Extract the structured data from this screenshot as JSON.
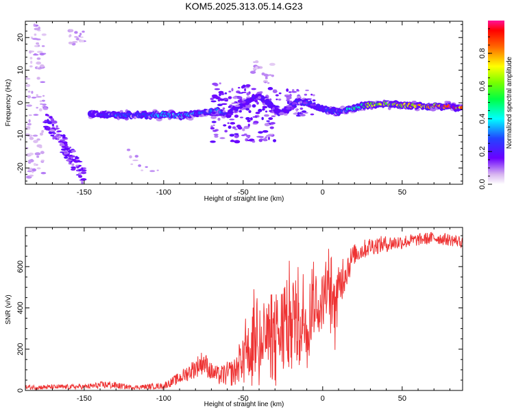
{
  "title": "KOM5.2025.313.05.14.G23",
  "chart_data": [
    {
      "type": "heatmap",
      "xlabel": "Height of straight line (km)",
      "ylabel": "Frequency (Hz)",
      "xlim": [
        -187,
        88
      ],
      "ylim": [
        -25,
        25
      ],
      "xticks": [
        -150,
        -100,
        -50,
        0,
        50
      ],
      "yticks": [
        -20,
        -10,
        0,
        10,
        20
      ],
      "colorbar": {
        "label": "Normalized spectral amplitude",
        "range": [
          0,
          1
        ],
        "ticks": [
          "0.0",
          "0.2",
          "0.4",
          "0.6",
          "0.8"
        ],
        "tick_values": [
          0,
          0.2,
          0.4,
          0.6,
          0.8
        ]
      },
      "ridge": {
        "x": [
          -145,
          -130,
          -115,
          -100,
          -90,
          -80,
          -72,
          -66,
          -60,
          -55,
          -48,
          -42,
          -35,
          -28,
          -22,
          -16,
          -10,
          -5,
          0,
          10,
          20,
          30,
          40,
          50,
          60,
          70,
          80,
          88
        ],
        "freq": [
          -3.5,
          -3.8,
          -3.8,
          -3.6,
          -4.0,
          -3.5,
          -2.8,
          -2.0,
          -4.0,
          -1.5,
          0.0,
          2.0,
          0.5,
          -3.0,
          -2.0,
          0.5,
          0.0,
          -1.0,
          -2.0,
          -3.0,
          -1.5,
          -0.5,
          -0.3,
          -0.8,
          -1.0,
          -1.0,
          -1.3,
          -1.5
        ],
        "amplitude": [
          0.15,
          0.3,
          0.25,
          0.35,
          0.4,
          0.35,
          0.25,
          0.35,
          0.2,
          0.15,
          0.1,
          0.1,
          0.1,
          0.12,
          0.2,
          0.25,
          0.3,
          0.2,
          0.2,
          0.3,
          0.45,
          0.65,
          0.6,
          0.7,
          0.75,
          0.8,
          0.9,
          0.85
        ]
      }
    },
    {
      "type": "line",
      "xlabel": "Height of straight line (km)",
      "ylabel": "SNR (v/v)",
      "xlim": [
        -187,
        88
      ],
      "ylim": [
        0,
        790
      ],
      "xticks": [
        -150,
        -100,
        -50,
        0,
        50
      ],
      "yticks": [
        0,
        200,
        400,
        600
      ],
      "color": "#ee3333",
      "series": [
        {
          "name": "SNR",
          "envelope_x": [
            -187,
            -150,
            -135,
            -120,
            -100,
            -90,
            -80,
            -75,
            -70,
            -65,
            -60,
            -55,
            -50,
            -45,
            -42,
            -38,
            -35,
            -30,
            -25,
            -20,
            -15,
            -10,
            -5,
            0,
            5,
            8,
            12,
            20,
            30,
            40,
            50,
            60,
            70,
            80,
            88
          ],
          "envelope_mean": [
            15,
            18,
            28,
            15,
            22,
            60,
            110,
            140,
            90,
            70,
            80,
            90,
            180,
            200,
            300,
            260,
            240,
            250,
            300,
            320,
            320,
            340,
            420,
            430,
            500,
            380,
            550,
            660,
            700,
            710,
            720,
            730,
            740,
            730,
            720
          ],
          "envelope_amp": [
            12,
            12,
            20,
            10,
            15,
            30,
            50,
            60,
            45,
            45,
            60,
            70,
            120,
            140,
            230,
            210,
            200,
            200,
            230,
            230,
            210,
            200,
            150,
            140,
            180,
            150,
            120,
            50,
            45,
            40,
            35,
            30,
            30,
            30,
            30
          ]
        }
      ]
    }
  ]
}
